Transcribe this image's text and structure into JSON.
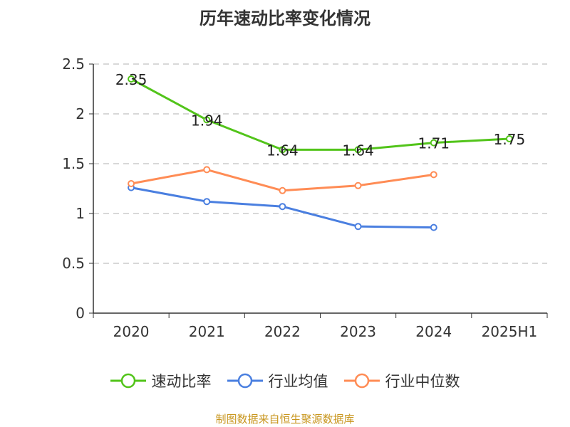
{
  "chart_data": {
    "type": "line",
    "title": "历年速动比率变化情况",
    "categories": [
      "2020",
      "2021",
      "2022",
      "2023",
      "2024",
      "2025H1"
    ],
    "ylim": [
      0,
      2.5
    ],
    "yticks": [
      "0",
      "0.5",
      "1",
      "1.5",
      "2",
      "2.5"
    ],
    "grid": true,
    "legend_position": "bottom",
    "series": [
      {
        "name": "速动比率",
        "color": "#52c41a",
        "values": [
          2.35,
          1.94,
          1.64,
          1.64,
          1.71,
          1.75
        ],
        "labels": [
          "2.35",
          "1.94",
          "1.64",
          "1.64",
          "1.71",
          "1.75"
        ]
      },
      {
        "name": "行业均值",
        "color": "#4a7fe0",
        "values": [
          1.26,
          1.12,
          1.07,
          0.87,
          0.86,
          null
        ]
      },
      {
        "name": "行业中位数",
        "color": "#ff8c55",
        "values": [
          1.3,
          1.44,
          1.23,
          1.28,
          1.39,
          null
        ]
      }
    ]
  },
  "source": "制图数据来自恒生聚源数据库"
}
